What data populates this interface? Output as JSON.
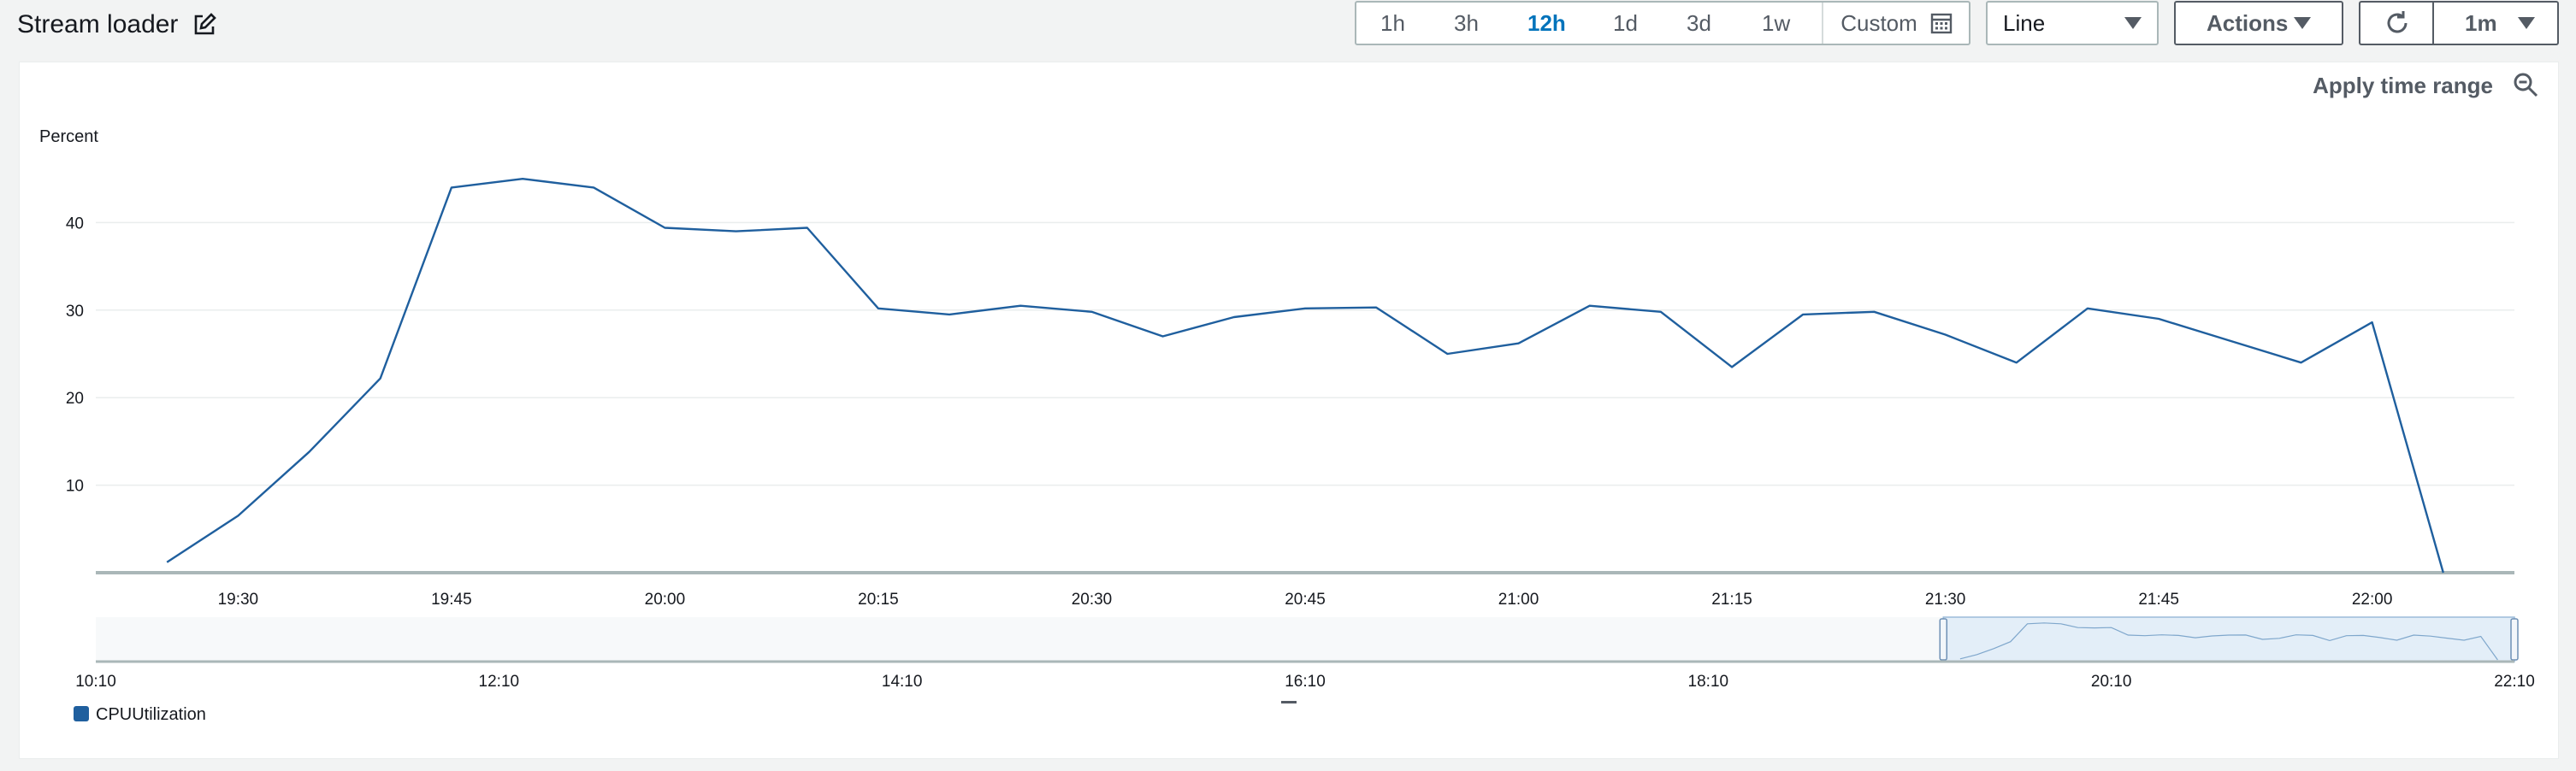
{
  "header": {
    "title": "Stream loader",
    "edit_icon": "edit-icon"
  },
  "time_range": {
    "options": [
      "1h",
      "3h",
      "12h",
      "1d",
      "3d",
      "1w"
    ],
    "active": "12h",
    "custom_label": "Custom",
    "custom_icon": "calendar-icon"
  },
  "chart_type_select": {
    "value": "Line"
  },
  "actions": {
    "label": "Actions"
  },
  "refresh": {
    "icon": "refresh-icon",
    "interval": "1m"
  },
  "panel": {
    "apply_time_range": "Apply time range",
    "zoom_icon": "zoom-out-icon"
  },
  "colors": {
    "series": "#1f5f9e",
    "active": "#0073bb"
  },
  "chart_data": {
    "type": "line",
    "ylabel": "Percent",
    "yticks": [
      10,
      20,
      30,
      40
    ],
    "ylim": [
      0,
      50
    ],
    "xlim": [
      "19:20",
      "22:10"
    ],
    "xticks": [
      "19:30",
      "19:45",
      "20:00",
      "20:15",
      "20:30",
      "20:45",
      "21:00",
      "21:15",
      "21:30",
      "21:45",
      "22:00"
    ],
    "grid": "horizontal",
    "legend_position": "bottom-left",
    "series": [
      {
        "name": "CPUUtilization",
        "x": [
          "19:25",
          "19:30",
          "19:35",
          "19:40",
          "19:45",
          "19:50",
          "19:55",
          "20:00",
          "20:05",
          "20:10",
          "20:15",
          "20:20",
          "20:25",
          "20:30",
          "20:35",
          "20:40",
          "20:45",
          "20:50",
          "20:55",
          "21:00",
          "21:05",
          "21:10",
          "21:15",
          "21:20",
          "21:25",
          "21:30",
          "21:35",
          "21:40",
          "21:45",
          "21:50",
          "21:55",
          "22:00",
          "22:05"
        ],
        "values": [
          1.2,
          6.5,
          13.8,
          22.2,
          44.0,
          45.0,
          44.0,
          39.4,
          39.0,
          39.4,
          30.2,
          29.5,
          30.5,
          29.8,
          27.0,
          29.2,
          30.2,
          30.3,
          25.0,
          26.2,
          30.5,
          29.8,
          23.5,
          29.5,
          29.8,
          27.2,
          24.0,
          30.2,
          29.0,
          26.5,
          24.0,
          28.6,
          0
        ]
      }
    ],
    "overview": {
      "xticks": [
        "10:10",
        "12:10",
        "14:10",
        "16:10",
        "18:10",
        "20:10",
        "22:10"
      ],
      "xlim": [
        "10:10",
        "22:10"
      ],
      "selection": [
        "19:20",
        "22:10"
      ]
    }
  }
}
